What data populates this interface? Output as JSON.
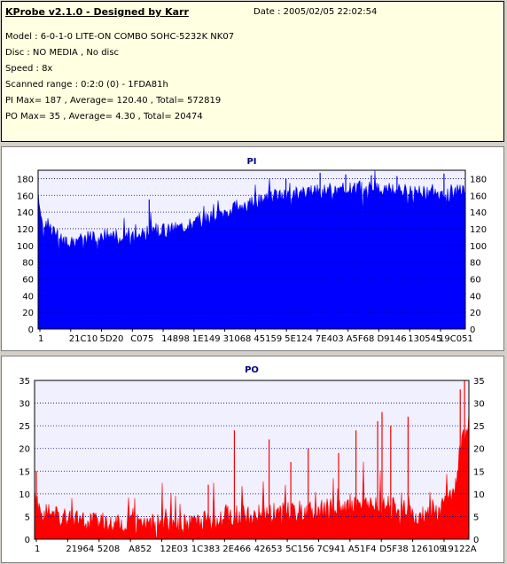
{
  "header": {
    "title": "KProbe v2.1.0 - Designed by Karr",
    "date": "Date : 2005/02/05 22:02:54",
    "lines": [
      "Model : 6-0-1-0 LITE-ON COMBO SOHC-5232K NK07",
      "Disc : NO MEDIA , No disc",
      "Speed : 8x",
      "Scanned range : 0:2:0 (0) - 1FDA81h",
      "PI Max= 187 , Average= 120.40 , Total= 572819",
      "PO Max= 35 , Average= 4.30 , Total= 20474"
    ]
  },
  "colors": {
    "pi": "#0000ff",
    "po": "#ff0000",
    "plot_bg": "#f0f0ff",
    "grid": "#000080"
  },
  "chart_data": [
    {
      "type": "area",
      "title": "PI",
      "ylim": [
        0,
        190
      ],
      "yticks": [
        0,
        20,
        40,
        60,
        80,
        100,
        120,
        140,
        160,
        180
      ],
      "xtick_labels": [
        "1",
        "21C10",
        "5D20",
        "C075",
        "14898",
        "1E149",
        "31068",
        "45159",
        "5E124",
        "7E403",
        "A5F68",
        "D9146",
        "130545",
        "19C051"
      ],
      "grid": "horizontal dotted",
      "profile": [
        [
          0,
          158
        ],
        [
          0.01,
          130
        ],
        [
          0.03,
          120
        ],
        [
          0.06,
          105
        ],
        [
          0.1,
          108
        ],
        [
          0.15,
          112
        ],
        [
          0.2,
          113
        ],
        [
          0.25,
          115
        ],
        [
          0.3,
          118
        ],
        [
          0.35,
          124
        ],
        [
          0.4,
          132
        ],
        [
          0.45,
          142
        ],
        [
          0.5,
          152
        ],
        [
          0.55,
          158
        ],
        [
          0.6,
          162
        ],
        [
          0.65,
          165
        ],
        [
          0.7,
          167
        ],
        [
          0.75,
          168
        ],
        [
          0.8,
          168
        ],
        [
          0.85,
          166
        ],
        [
          0.9,
          163
        ],
        [
          0.95,
          160
        ],
        [
          0.98,
          164
        ],
        [
          1,
          165
        ]
      ],
      "spikes": [
        [
          0.26,
          155
        ],
        [
          0.58,
          180
        ],
        [
          0.66,
          187
        ],
        [
          0.72,
          185
        ],
        [
          0.78,
          184
        ],
        [
          0.84,
          183
        ],
        [
          0.95,
          186
        ]
      ]
    },
    {
      "type": "area",
      "title": "PO",
      "ylim": [
        0,
        35
      ],
      "yticks": [
        0,
        5,
        10,
        15,
        20,
        25,
        30,
        35
      ],
      "xtick_labels": [
        "1",
        "21964",
        "5208",
        "A852",
        "12E03",
        "1C383",
        "2E466",
        "42653",
        "5C156",
        "7C941",
        "A51F4",
        "D5F38",
        "126109",
        "19122A"
      ],
      "grid": "horizontal dotted",
      "profile": [
        [
          0,
          9
        ],
        [
          0.02,
          6
        ],
        [
          0.1,
          4
        ],
        [
          0.2,
          3
        ],
        [
          0.3,
          3
        ],
        [
          0.35,
          3.5
        ],
        [
          0.4,
          4
        ],
        [
          0.45,
          5
        ],
        [
          0.5,
          5
        ],
        [
          0.55,
          5.5
        ],
        [
          0.6,
          6
        ],
        [
          0.65,
          6.5
        ],
        [
          0.7,
          7
        ],
        [
          0.75,
          8
        ],
        [
          0.8,
          7.5
        ],
        [
          0.85,
          6.5
        ],
        [
          0.88,
          5
        ],
        [
          0.9,
          5
        ],
        [
          0.93,
          6
        ],
        [
          0.95,
          8
        ],
        [
          0.97,
          12
        ],
        [
          0.98,
          20
        ],
        [
          1,
          26
        ]
      ],
      "spikes": [
        [
          0.004,
          15
        ],
        [
          0.4,
          12
        ],
        [
          0.46,
          24
        ],
        [
          0.54,
          22
        ],
        [
          0.59,
          17
        ],
        [
          0.63,
          20
        ],
        [
          0.7,
          19
        ],
        [
          0.74,
          24
        ],
        [
          0.79,
          26
        ],
        [
          0.82,
          25
        ],
        [
          0.8,
          28
        ],
        [
          0.86,
          27
        ],
        [
          0.98,
          33
        ],
        [
          0.99,
          35
        ]
      ]
    }
  ]
}
